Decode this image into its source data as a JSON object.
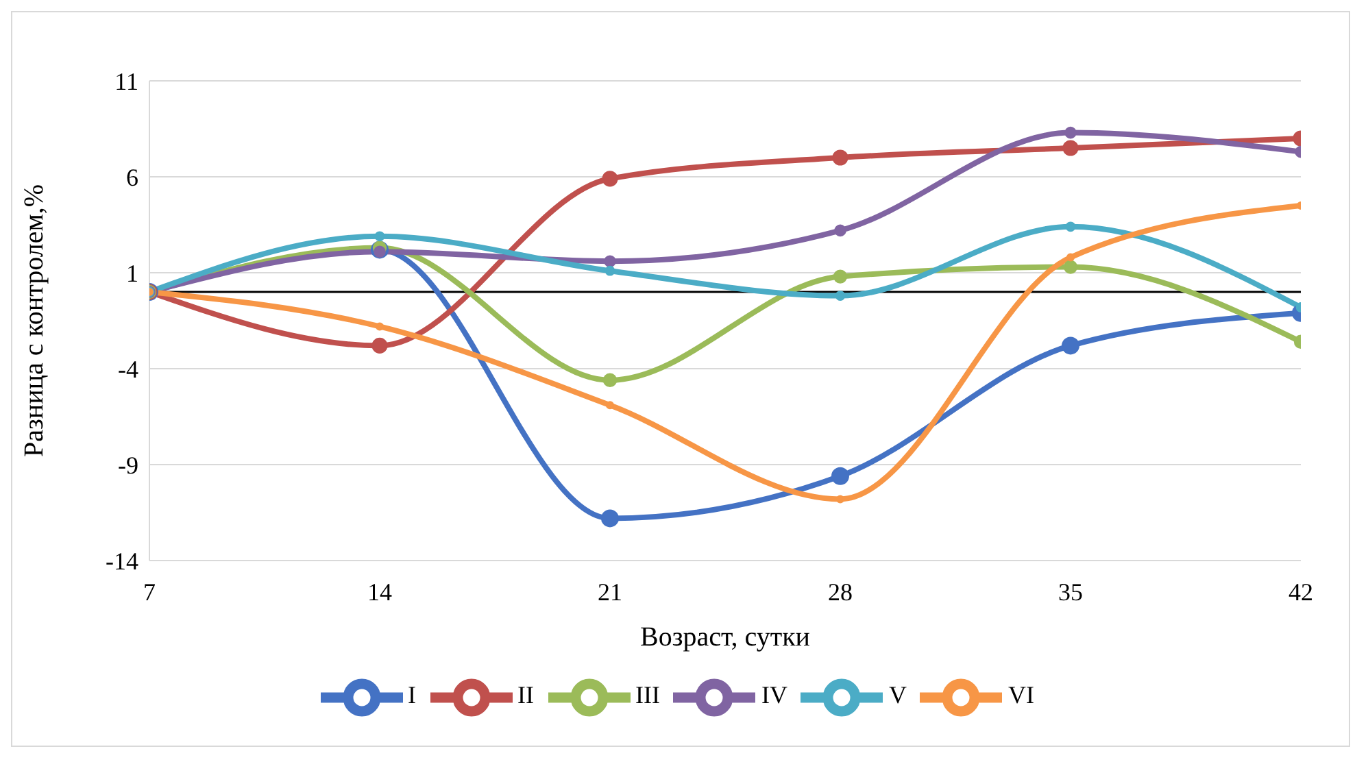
{
  "chart_data": {
    "type": "line",
    "xlabel": "Возраст, сутки",
    "ylabel": "Разница с контролем,%",
    "x": [
      7,
      14,
      21,
      28,
      35,
      42
    ],
    "series": [
      {
        "name": "I",
        "color": "#4472c4",
        "values": [
          0,
          2.2,
          -11.8,
          -9.6,
          -2.8,
          -1.1
        ]
      },
      {
        "name": "II",
        "color": "#c0504d",
        "values": [
          0,
          -2.8,
          5.9,
          7.0,
          7.5,
          8.0
        ]
      },
      {
        "name": "III",
        "color": "#9bbb59",
        "values": [
          0,
          2.3,
          -4.6,
          0.8,
          1.3,
          -2.6
        ]
      },
      {
        "name": "IV",
        "color": "#8064a2",
        "values": [
          0,
          2.1,
          1.6,
          3.2,
          8.3,
          7.3
        ]
      },
      {
        "name": "V",
        "color": "#4bacc6",
        "values": [
          0,
          2.9,
          1.1,
          -0.2,
          3.4,
          -0.8
        ]
      },
      {
        "name": "VI",
        "color": "#f79646",
        "values": [
          0,
          -1.8,
          -5.9,
          -10.8,
          1.8,
          4.5
        ]
      }
    ],
    "xlim": [
      7,
      42
    ],
    "xticks": [
      7,
      14,
      21,
      28,
      35,
      42
    ],
    "ylim": [
      -14,
      11
    ],
    "yticks": [
      -14,
      -9,
      -4,
      1,
      6,
      11
    ],
    "ref_lines": [
      {
        "axis": "y",
        "value": 0,
        "color": "#000000"
      }
    ],
    "grid": "y",
    "legend": "bottom",
    "marker": "circle",
    "line_style": "solid"
  }
}
